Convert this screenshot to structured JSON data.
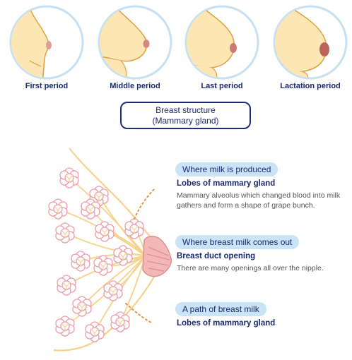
{
  "stages": [
    {
      "label": "First period"
    },
    {
      "label": "Middle period"
    },
    {
      "label": "Last period"
    },
    {
      "label": "Lactation period"
    }
  ],
  "title": {
    "line1": "Breast structure",
    "line2": "(Mammary gland)"
  },
  "annotations": [
    {
      "tag": "Where milk is produced",
      "heading": "Lobes of mammary gland",
      "description": "Mammary alveolus which changed blood into milk gathers and form a shape of grape bunch."
    },
    {
      "tag": "Where breast milk comes out",
      "heading": "Breast duct opening",
      "description": "There are many openings all over the nipple."
    },
    {
      "tag": "A path of breast milk",
      "heading": "Lobes of mammary gland"
    }
  ],
  "colors": {
    "skin": "#fbe6b4",
    "outline": "#e0a040",
    "circle_ring": "#c7e0f2",
    "nipple": "#cf8a86",
    "lobe": "#ee9aa8",
    "duct": "#f6d28a",
    "text_navy": "#1a2a6e",
    "pill": "#c9e3f7"
  }
}
